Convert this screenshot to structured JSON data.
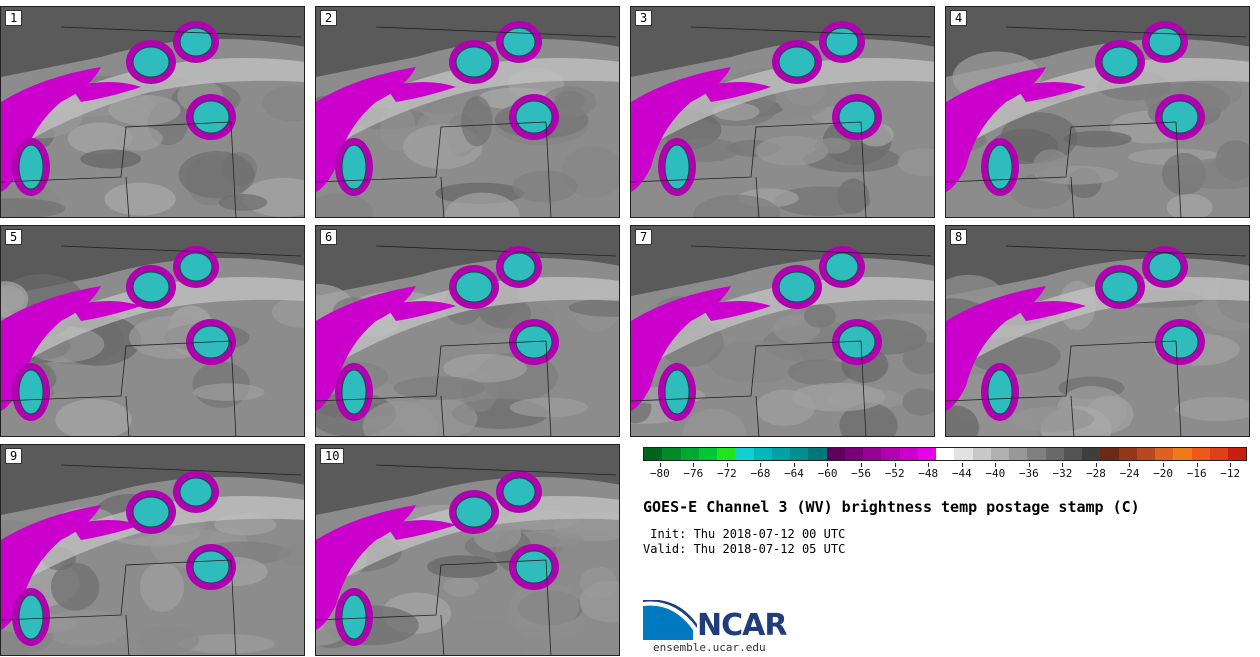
{
  "panels": [
    "1",
    "2",
    "3",
    "4",
    "5",
    "6",
    "7",
    "8",
    "9",
    "10"
  ],
  "colorbar": {
    "colors": [
      "#00641e",
      "#008a28",
      "#00a92f",
      "#00c733",
      "#1fe51f",
      "#0fcfcf",
      "#00b8b8",
      "#00a3a3",
      "#008e8e",
      "#007878",
      "#5e005e",
      "#7a007a",
      "#950095",
      "#b000b0",
      "#cc00cc",
      "#e800e8",
      "#ffffff",
      "#e2e2e2",
      "#c8c8c8",
      "#b0b0b0",
      "#989898",
      "#808080",
      "#6a6a6a",
      "#545454",
      "#3e3e3e",
      "#6a2a16",
      "#93361c",
      "#b84820",
      "#e06020",
      "#f07a1a",
      "#f05a18",
      "#e04018",
      "#c82010"
    ],
    "ticks": [
      "-80",
      "-76",
      "-72",
      "-68",
      "-64",
      "-60",
      "-56",
      "-52",
      "-48",
      "-44",
      "-40",
      "-36",
      "-32",
      "-28",
      "-24",
      "-20",
      "-16",
      "-12"
    ],
    "range": [
      -82,
      -10
    ]
  },
  "title": "GOES-E Channel 3 (WV) brightness temp postage stamp (C)",
  "init_line": " Init: Thu 2018-07-12 00 UTC",
  "valid_line": "Valid: Thu 2018-07-12 05 UTC",
  "logo": {
    "text": "NCAR",
    "site": "ensemble.ucar.edu",
    "brand_color": "#1f3d7a",
    "swoosh_color": "#0079c1"
  }
}
